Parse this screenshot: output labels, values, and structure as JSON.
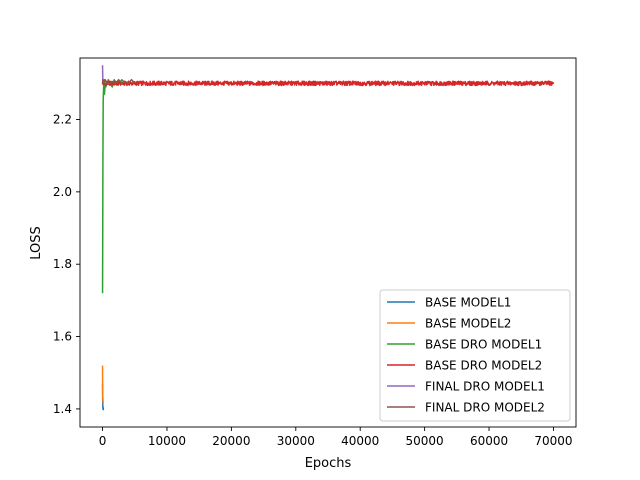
{
  "chart_data": {
    "type": "line",
    "title": "",
    "xlabel": "Epochs",
    "ylabel": "LOSS",
    "xlim": [
      -3500,
      73500
    ],
    "ylim": [
      1.35,
      2.37
    ],
    "xticks": [
      0,
      10000,
      20000,
      30000,
      40000,
      50000,
      60000,
      70000
    ],
    "xtick_labels": [
      "0",
      "10000",
      "20000",
      "30000",
      "40000",
      "50000",
      "60000",
      "70000"
    ],
    "yticks": [
      1.4,
      1.6,
      1.8,
      2.0,
      2.2
    ],
    "ytick_labels": [
      "1.4",
      "1.6",
      "1.8",
      "2.0",
      "2.2"
    ],
    "grid": false,
    "legend_position": "lower-right",
    "series": [
      {
        "name": "BASE MODEL1",
        "color": "#1f77b4",
        "x": [
          0,
          20,
          40,
          60,
          80,
          100,
          120,
          150
        ],
        "y": [
          1.47,
          1.43,
          1.41,
          1.4,
          1.405,
          1.4,
          1.398,
          1.4
        ]
      },
      {
        "name": "BASE MODEL2",
        "color": "#ff7f0e",
        "x": [
          0,
          15,
          30,
          50,
          80,
          110,
          140,
          180
        ],
        "y": [
          1.52,
          1.47,
          1.44,
          1.43,
          1.42,
          1.415,
          1.415,
          1.415
        ]
      },
      {
        "name": "BASE DRO MODEL1",
        "color": "#2ca02c",
        "x": [
          0,
          30,
          60,
          100,
          150,
          200,
          300,
          400,
          500,
          700,
          900,
          1200,
          1500,
          1800,
          2200,
          2600,
          3000,
          3500,
          4000
        ],
        "y": [
          1.72,
          1.9,
          2.1,
          2.25,
          2.28,
          2.3,
          2.27,
          2.3,
          2.29,
          2.3,
          2.31,
          2.3,
          2.29,
          2.31,
          2.3,
          2.3,
          2.31,
          2.3,
          2.3
        ]
      },
      {
        "name": "BASE DRO MODEL2",
        "color": "#d62728",
        "x": [
          0,
          70000
        ],
        "y": [
          2.3,
          2.3
        ],
        "noise": 0.006
      },
      {
        "name": "FINAL DRO MODEL1",
        "color": "#9467bd",
        "x": [
          0,
          20,
          40,
          80,
          120,
          200,
          300,
          500
        ],
        "y": [
          2.35,
          2.33,
          2.31,
          2.3,
          2.31,
          2.3,
          2.31,
          2.3
        ]
      },
      {
        "name": "FINAL DRO MODEL2",
        "color": "#8c564b",
        "x": [
          0,
          50,
          100,
          200,
          400,
          800,
          1200,
          1600,
          2000,
          2500,
          3000,
          3500,
          4000,
          4500,
          5000
        ],
        "y": [
          2.3,
          2.31,
          2.3,
          2.3,
          2.31,
          2.3,
          2.3,
          2.305,
          2.3,
          2.31,
          2.3,
          2.305,
          2.3,
          2.31,
          2.3
        ]
      }
    ]
  }
}
